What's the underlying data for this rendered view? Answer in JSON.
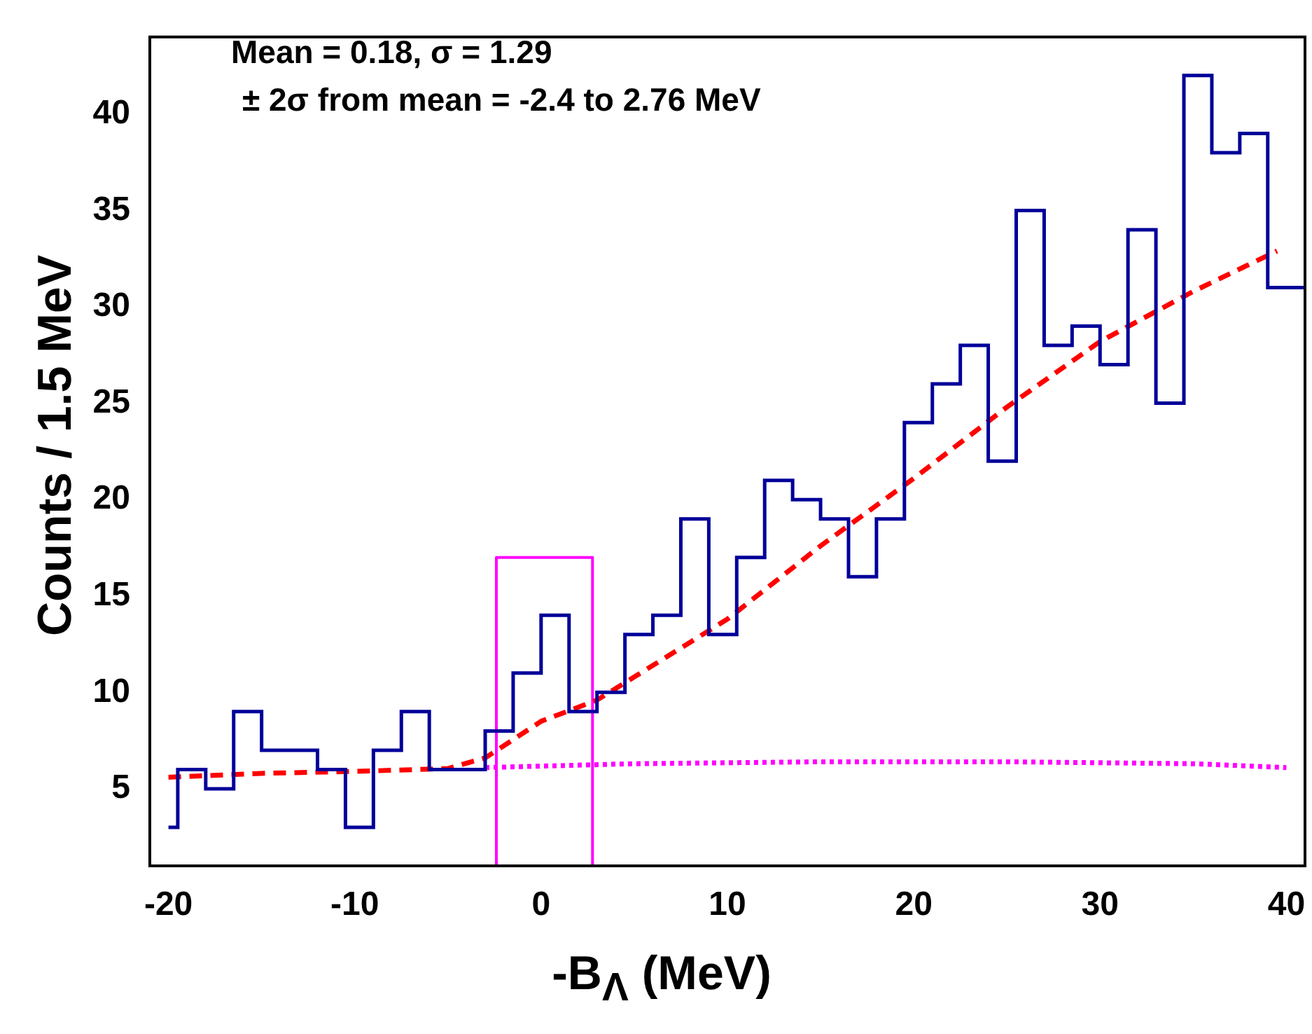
{
  "chart_data": {
    "type": "histogram",
    "xlabel": "-B$_{Λ}$ (MeV)",
    "ylabel": "Counts / 1.5 MeV",
    "annotations": [
      "Mean = 0.18,  σ = 1.29",
      "± 2σ from mean = -2.4 to 2.76 MeV"
    ],
    "xlim": [
      -21,
      41
    ],
    "ylim": [
      1,
      44
    ],
    "xticks": [
      -20,
      -10,
      0,
      10,
      20,
      30,
      40
    ],
    "yticks": [
      5,
      10,
      15,
      20,
      25,
      30,
      35,
      40
    ],
    "series": [
      {
        "color": "#000099",
        "bins": [
          -20,
          -19.5,
          -18,
          -16.5,
          -15,
          -13.5,
          -12,
          -10.5,
          -9,
          -7.5,
          -6,
          -4.5,
          -3,
          -1.5,
          0,
          1.5,
          3,
          4.5,
          6,
          7.5,
          9,
          10.5,
          12,
          13.5,
          15,
          16.5,
          18,
          19.5,
          21,
          22.5,
          24,
          25.5,
          27,
          28.5,
          30,
          31.5,
          33,
          34.5,
          36,
          37.5,
          39,
          41
        ],
        "values": [
          3,
          6,
          5,
          9,
          7,
          7,
          6,
          3,
          7,
          9,
          6,
          6,
          8,
          11,
          14,
          9,
          10,
          13,
          14,
          19,
          13,
          17,
          21,
          20,
          19,
          16,
          19,
          24,
          26,
          28,
          22,
          35,
          28,
          29,
          27,
          34,
          25,
          42,
          38,
          39,
          31
        ]
      },
      {
        "type": "line",
        "color": "#ff0000",
        "line_style": "dashed",
        "x": [
          -20,
          -15,
          -10,
          -5,
          -3,
          0,
          3,
          5,
          10,
          15,
          20,
          25,
          30,
          35,
          39.5
        ],
        "values": [
          5.6,
          5.8,
          5.9,
          6.05,
          6.6,
          8.5,
          9.6,
          10.8,
          13.8,
          17.6,
          21.1,
          24.8,
          28.2,
          30.8,
          32.9
        ]
      },
      {
        "type": "line",
        "color": "#ff00ff",
        "line_style": "dotted",
        "x": [
          -3,
          5,
          15,
          25,
          35,
          40
        ],
        "values": [
          6.1,
          6.3,
          6.4,
          6.4,
          6.3,
          6.1
        ]
      },
      {
        "type": "line",
        "color": "#ff00ff",
        "line_style": "solid",
        "x": [
          -2.4,
          -2.4,
          2.76,
          2.76
        ],
        "values": [
          1,
          17,
          17,
          1
        ]
      }
    ]
  }
}
